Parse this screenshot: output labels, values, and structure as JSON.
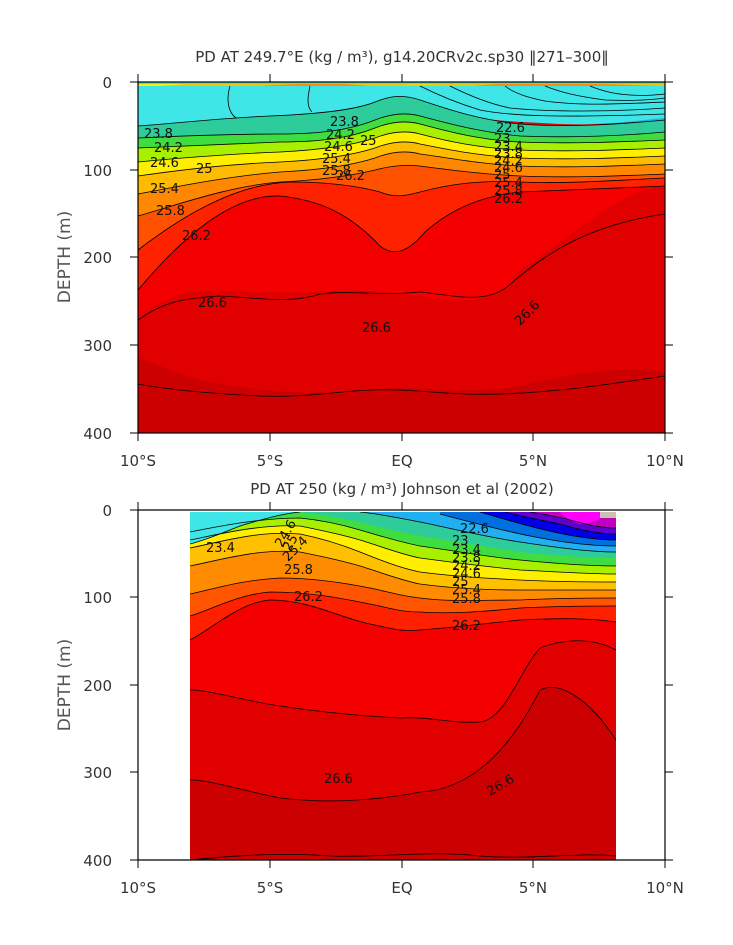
{
  "chart_data": [
    {
      "type": "contour",
      "title": "PD AT 249.7°E (kg / m³), g14.20CRv2c.sp30 ‖271–300‖",
      "xlabel": "",
      "ylabel": "DEPTH (m)",
      "x_ticks": [
        "10°S",
        "5°S",
        "EQ",
        "5°N",
        "10°N"
      ],
      "y_ticks": [
        "0",
        "100",
        "200",
        "300",
        "400"
      ],
      "xlim": [
        -10,
        10
      ],
      "ylim": [
        0,
        400
      ],
      "contour_labels": [
        "23.8",
        "24.2",
        "24.6",
        "25",
        "25.4",
        "25.8",
        "26.2",
        "26.6",
        "26.6",
        "26.6",
        "23.8",
        "24.2",
        "24.6",
        "25",
        "25.4",
        "25.8",
        "26.2",
        "22.6",
        "23",
        "23.4",
        "23.8",
        "24.2",
        "24.6",
        "25",
        "25.4",
        "25.8",
        "26.2"
      ]
    },
    {
      "type": "contour",
      "title": "PD AT 250 (kg / m³) Johnson et al (2002)",
      "xlabel": "",
      "ylabel": "DEPTH (m)",
      "x_ticks": [
        "10°S",
        "5°S",
        "EQ",
        "5°N",
        "10°N"
      ],
      "y_ticks": [
        "0",
        "100",
        "200",
        "300",
        "400"
      ],
      "xlim": [
        -10,
        10
      ],
      "ylim": [
        0,
        400
      ],
      "data_extent_lat": [
        -8,
        8.2
      ],
      "contour_labels": [
        "23.4",
        "24.6",
        "25",
        "25.4",
        "25.8",
        "26.2",
        "26.2",
        "26.6",
        "26.6",
        "22.6",
        "23",
        "23.4",
        "23.8",
        "24.2",
        "24.6",
        "25",
        "25.4",
        "25.8"
      ]
    }
  ]
}
